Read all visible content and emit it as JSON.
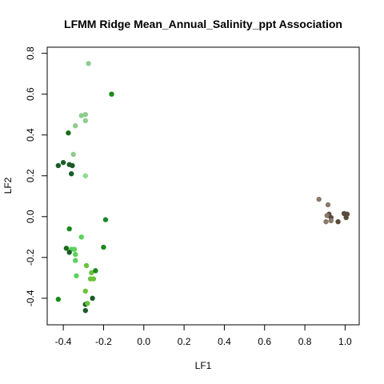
{
  "chart_data": {
    "type": "scatter",
    "title": "LFMM Ridge Mean_Annual_Salinity_ppt Association",
    "xlabel": "LF1",
    "ylabel": "LF2",
    "xlim": [
      -0.48,
      1.07
    ],
    "ylim": [
      -0.53,
      0.83
    ],
    "x_ticks": [
      -0.4,
      -0.2,
      0.0,
      0.2,
      0.4,
      0.6,
      0.8,
      1.0
    ],
    "x_tick_labels": [
      "-0.4",
      "-0.2",
      "0.0",
      "0.2",
      "0.4",
      "0.6",
      "0.8",
      "1.0"
    ],
    "y_ticks": [
      -0.4,
      -0.2,
      0.0,
      0.2,
      0.4,
      0.6,
      0.8
    ],
    "y_tick_labels": [
      "-0.4",
      "-0.2",
      "0.0",
      "0.2",
      "0.4",
      "0.6",
      "0.8"
    ],
    "grid": false,
    "legend": "none",
    "points": [
      {
        "x": -0.275,
        "y": 0.75,
        "color": "#8fcc8f"
      },
      {
        "x": -0.16,
        "y": 0.6,
        "color": "#1a8a1a"
      },
      {
        "x": -0.31,
        "y": 0.495,
        "color": "#8fcc8f"
      },
      {
        "x": -0.29,
        "y": 0.5,
        "color": "#8fcc8f"
      },
      {
        "x": -0.29,
        "y": 0.47,
        "color": "#8fcc8f"
      },
      {
        "x": -0.34,
        "y": 0.445,
        "color": "#8fcc8f"
      },
      {
        "x": -0.375,
        "y": 0.41,
        "color": "#1a6b1a"
      },
      {
        "x": -0.35,
        "y": 0.305,
        "color": "#8fcc8f"
      },
      {
        "x": -0.4,
        "y": 0.265,
        "color": "#1a5c2a"
      },
      {
        "x": -0.425,
        "y": 0.25,
        "color": "#1a5c2a"
      },
      {
        "x": -0.37,
        "y": 0.255,
        "color": "#1a5c2a"
      },
      {
        "x": -0.355,
        "y": 0.25,
        "color": "#1a5c2a"
      },
      {
        "x": -0.36,
        "y": 0.21,
        "color": "#1a5c2a"
      },
      {
        "x": -0.29,
        "y": 0.2,
        "color": "#8fdc8f"
      },
      {
        "x": -0.19,
        "y": -0.015,
        "color": "#1a8a2a"
      },
      {
        "x": -0.37,
        "y": -0.06,
        "color": "#1a8a1a"
      },
      {
        "x": -0.31,
        "y": -0.1,
        "color": "#5ad25a"
      },
      {
        "x": -0.385,
        "y": -0.155,
        "color": "#1a6b1a"
      },
      {
        "x": -0.36,
        "y": -0.16,
        "color": "#5ad25a"
      },
      {
        "x": -0.345,
        "y": -0.16,
        "color": "#5ad25a"
      },
      {
        "x": -0.37,
        "y": -0.175,
        "color": "#1a5c2a"
      },
      {
        "x": -0.34,
        "y": -0.185,
        "color": "#5ad25a"
      },
      {
        "x": -0.34,
        "y": -0.215,
        "color": "#5ad25a"
      },
      {
        "x": -0.2,
        "y": -0.15,
        "color": "#1a8a1a"
      },
      {
        "x": -0.285,
        "y": -0.24,
        "color": "#6ac23a"
      },
      {
        "x": -0.26,
        "y": -0.275,
        "color": "#6ac23a"
      },
      {
        "x": -0.24,
        "y": -0.265,
        "color": "#1a8a1a"
      },
      {
        "x": -0.335,
        "y": -0.29,
        "color": "#5ad25a"
      },
      {
        "x": -0.265,
        "y": -0.305,
        "color": "#6ac23a"
      },
      {
        "x": -0.25,
        "y": -0.305,
        "color": "#6ac23a"
      },
      {
        "x": -0.29,
        "y": -0.365,
        "color": "#6ac23a"
      },
      {
        "x": -0.425,
        "y": -0.405,
        "color": "#1a8a1a"
      },
      {
        "x": -0.255,
        "y": -0.4,
        "color": "#1a5c2a"
      },
      {
        "x": -0.29,
        "y": -0.43,
        "color": "#1a5c2a"
      },
      {
        "x": -0.28,
        "y": -0.425,
        "color": "#6ac23a"
      },
      {
        "x": -0.29,
        "y": -0.46,
        "color": "#1a5c2a"
      },
      {
        "x": 0.87,
        "y": 0.085,
        "color": "#8a7a6a"
      },
      {
        "x": 0.915,
        "y": 0.058,
        "color": "#8a7a6a"
      },
      {
        "x": 0.995,
        "y": 0.015,
        "color": "#5a4a3a"
      },
      {
        "x": 1.01,
        "y": 0.012,
        "color": "#5a4a3a"
      },
      {
        "x": 0.92,
        "y": 0.012,
        "color": "#5a4a3a"
      },
      {
        "x": 0.91,
        "y": 0.005,
        "color": "#8a7a6a"
      },
      {
        "x": 0.93,
        "y": -0.005,
        "color": "#5a4a3a"
      },
      {
        "x": 1.005,
        "y": -0.005,
        "color": "#5a4a3a"
      },
      {
        "x": 0.905,
        "y": -0.025,
        "color": "#8a7a6a"
      },
      {
        "x": 0.93,
        "y": -0.02,
        "color": "#8a7a6a"
      },
      {
        "x": 0.965,
        "y": -0.025,
        "color": "#5a4a3a"
      }
    ]
  }
}
